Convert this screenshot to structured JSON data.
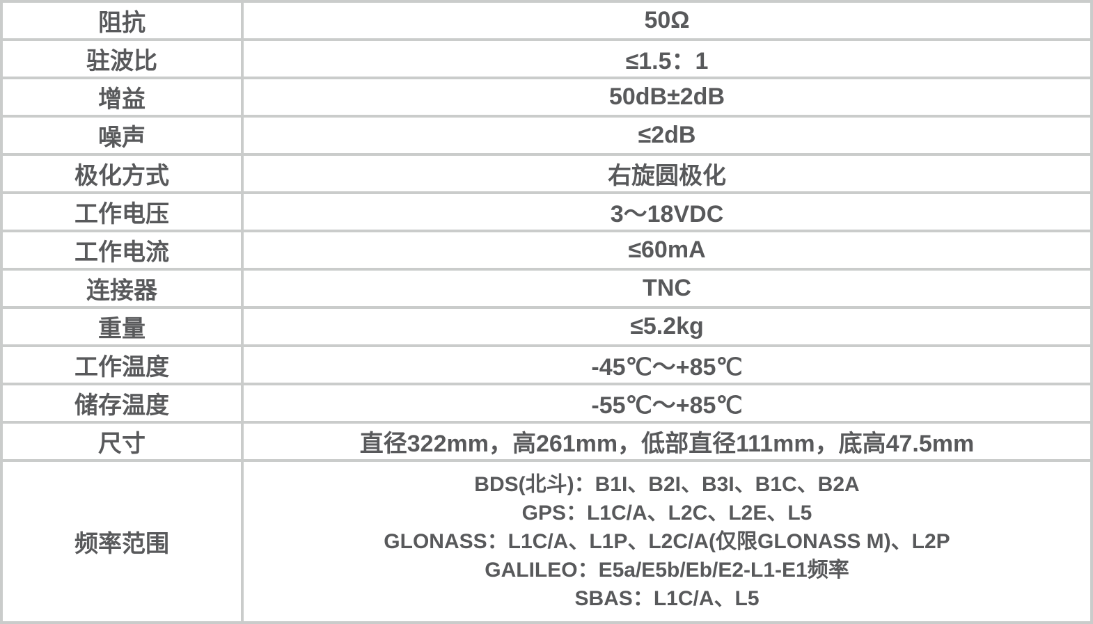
{
  "colors": {
    "border": "#cacccb",
    "text": "#58595b",
    "background": "#ffffff"
  },
  "table": {
    "rows": [
      {
        "label": "阻抗",
        "value": "50Ω"
      },
      {
        "label": "驻波比",
        "value": "≤1.5：1"
      },
      {
        "label": "增益",
        "value": "50dB±2dB"
      },
      {
        "label": "噪声",
        "value": "≤2dB"
      },
      {
        "label": "极化方式",
        "value": "右旋圆极化"
      },
      {
        "label": "工作电压",
        "value": "3～18VDC"
      },
      {
        "label": "工作电流",
        "value": "≤60mA"
      },
      {
        "label": "连接器",
        "value": "TNC"
      },
      {
        "label": "重量",
        "value": "≤5.2kg"
      },
      {
        "label": "工作温度",
        "value": "-45℃～+85℃"
      },
      {
        "label": "储存温度",
        "value": "-55℃～+85℃"
      },
      {
        "label": "尺寸",
        "value": "直径322mm，高261mm，低部直径111mm，底高47.5mm"
      },
      {
        "label": "频率范围",
        "value_lines": [
          "BDS(北斗)：B1I、B2I、B3I、B1C、B2A",
          "GPS：L1C/A、L2C、L2E、L5",
          "GLONASS：L1C/A、L1P、L2C/A(仅限GLONASS M)、L2P",
          "GALILEO：E5a/E5b/Eb/E2-L1-E1频率",
          "SBAS：L1C/A、L5"
        ]
      }
    ]
  }
}
